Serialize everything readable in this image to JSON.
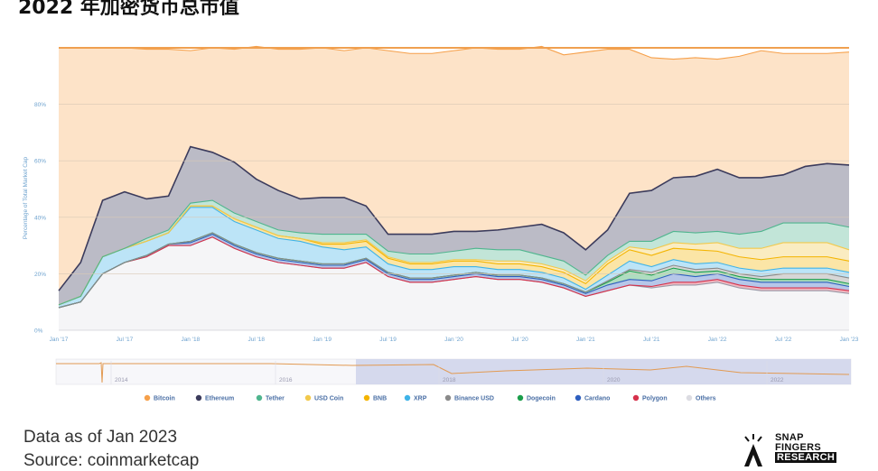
{
  "page_title": "2022 年加密货币总市值",
  "footer": {
    "data_note": "Data as of Jan 2023",
    "source": "Source: coinmarketcap"
  },
  "logo": {
    "line1": "SNAP",
    "line2": "FINGERS",
    "line3": "RESEARCH"
  },
  "chart_data": {
    "type": "area",
    "stacked": true,
    "title": "2022 年加密货币总市值",
    "ylabel": "Percentage of Total Market Cap",
    "xlabel": "",
    "ylim": [
      0,
      100
    ],
    "y_ticks": [
      0,
      20,
      40,
      60,
      80
    ],
    "y_tick_labels": [
      "0%",
      "20%",
      "40%",
      "60%",
      "80%"
    ],
    "x_ticks": [
      "Jan '17",
      "Jul '17",
      "Jan '18",
      "Jul '18",
      "Jan '19",
      "Jul '19",
      "Jan '20",
      "Jul '20",
      "Jan '21",
      "Jul '21",
      "Jan '22",
      "Jul '22",
      "Jan '23"
    ],
    "x": [
      "2017-01",
      "2017-03",
      "2017-05",
      "2017-07",
      "2017-09",
      "2017-11",
      "2018-01",
      "2018-03",
      "2018-05",
      "2018-07",
      "2018-09",
      "2018-11",
      "2019-01",
      "2019-03",
      "2019-05",
      "2019-07",
      "2019-09",
      "2019-11",
      "2020-01",
      "2020-03",
      "2020-05",
      "2020-07",
      "2020-09",
      "2020-11",
      "2021-01",
      "2021-03",
      "2021-05",
      "2021-07",
      "2021-09",
      "2021-11",
      "2022-01",
      "2022-03",
      "2022-05",
      "2022-07",
      "2022-09",
      "2022-11",
      "2023-01"
    ],
    "grid": true,
    "legend_position": "bottom",
    "navigator_ticks": [
      "2014",
      "2016",
      "2018",
      "2020",
      "2022"
    ],
    "series": [
      {
        "name": "Others",
        "color": "#f5f5f7",
        "values": [
          8,
          10,
          20,
          24,
          26,
          30,
          30,
          33,
          29,
          26,
          24,
          23,
          22,
          22,
          24,
          19,
          17,
          17,
          18,
          19,
          18,
          18,
          17,
          15,
          12,
          14,
          16,
          15,
          16,
          16,
          17,
          15,
          14,
          14,
          14,
          14,
          13
        ]
      },
      {
        "name": "Polygon",
        "color": "#d6314b",
        "values": [
          0,
          0,
          0,
          0,
          0,
          0,
          0,
          0,
          0,
          0,
          0,
          0,
          0,
          0,
          0,
          0,
          0,
          0,
          0,
          0,
          0,
          0,
          0,
          0,
          0,
          0,
          0,
          0.5,
          1,
          1,
          1,
          1,
          1,
          1,
          1,
          1,
          1
        ]
      },
      {
        "name": "Cardano",
        "color": "#2e5fbf",
        "values": [
          0,
          0,
          0,
          0,
          0.5,
          0.5,
          1,
          1,
          1,
          1,
          1,
          1,
          1,
          1,
          1,
          1,
          1,
          1,
          1,
          1,
          1,
          1,
          1,
          1,
          1,
          2,
          2,
          2,
          3,
          2,
          2,
          2,
          2,
          2,
          2,
          2,
          1.5
        ]
      },
      {
        "name": "Dogecoin",
        "color": "#1b9e4b",
        "values": [
          0,
          0,
          0,
          0,
          0,
          0,
          0.5,
          0.5,
          0.5,
          0.5,
          0.5,
          0.5,
          0.5,
          0.5,
          0.5,
          0.5,
          0.5,
          0.5,
          0.5,
          0.5,
          0.5,
          0.5,
          0.5,
          0.5,
          0.5,
          1,
          3,
          2,
          2,
          1.5,
          1,
          1,
          1,
          1,
          1,
          1,
          1
        ]
      },
      {
        "name": "Binance USD",
        "color": "#8a8a8a",
        "values": [
          0,
          0,
          0,
          0,
          0,
          0,
          0,
          0,
          0,
          0,
          0,
          0,
          0,
          0,
          0,
          0,
          0,
          0,
          0,
          0,
          0,
          0,
          0,
          0,
          0,
          0.5,
          0.5,
          1,
          1,
          1,
          1,
          1,
          1,
          2,
          2,
          2,
          2
        ]
      },
      {
        "name": "XRP",
        "color": "#3fb3e8",
        "values": [
          1,
          2,
          6,
          5,
          5,
          4,
          12,
          9,
          8,
          8,
          7,
          7,
          6,
          5,
          4,
          3,
          3,
          3,
          3,
          2,
          2,
          2,
          2,
          2,
          1,
          2,
          3,
          2,
          2,
          2,
          2,
          2,
          2,
          2,
          2,
          2,
          2
        ]
      },
      {
        "name": "BNB",
        "color": "#f4b400",
        "values": [
          0,
          0,
          0,
          0,
          0,
          0,
          0.5,
          0.5,
          1,
          1,
          1,
          1,
          1,
          2,
          2,
          2,
          2,
          2,
          2,
          2,
          2,
          2,
          2,
          2,
          2,
          4,
          4,
          4,
          4,
          5,
          4,
          4,
          4,
          4,
          4,
          4,
          4
        ]
      },
      {
        "name": "USD Coin",
        "color": "#f2c94c",
        "values": [
          0,
          0,
          0,
          0,
          0,
          0,
          0,
          0,
          0,
          0,
          0,
          0,
          0.5,
          0.5,
          0.5,
          0.5,
          0.5,
          0.5,
          0.5,
          0.5,
          1,
          1,
          1,
          1,
          1,
          1,
          1,
          2,
          2,
          2,
          3,
          3,
          4,
          5,
          5,
          5,
          4
        ]
      },
      {
        "name": "Tether",
        "color": "#4fb58e",
        "values": [
          0,
          0,
          0,
          0,
          1,
          1,
          1,
          2,
          2,
          2,
          2,
          2,
          3,
          3,
          2,
          2,
          3,
          3,
          3,
          4,
          4,
          4,
          3,
          3,
          2,
          2,
          2,
          3,
          4,
          4,
          4,
          5,
          6,
          7,
          7,
          7,
          8
        ]
      },
      {
        "name": "Ethereum",
        "color": "#3b3b5c",
        "values": [
          5,
          12,
          20,
          20,
          14,
          12,
          20,
          17,
          18,
          15,
          14,
          12,
          13,
          13,
          10,
          6,
          7,
          7,
          7,
          6,
          7,
          8,
          11,
          10,
          9,
          9,
          17,
          18,
          19,
          20,
          22,
          20,
          19,
          17,
          20,
          21,
          22
        ]
      },
      {
        "name": "Bitcoin",
        "color": "#f6a04a",
        "values": [
          86,
          76,
          54,
          51,
          53,
          52,
          34,
          37,
          40,
          47,
          50,
          53,
          53,
          52,
          56,
          65,
          64,
          64,
          64,
          65,
          64,
          63,
          63,
          63,
          70,
          64,
          51,
          47,
          42,
          42,
          39,
          43,
          45,
          43,
          40,
          39,
          40
        ]
      }
    ]
  }
}
